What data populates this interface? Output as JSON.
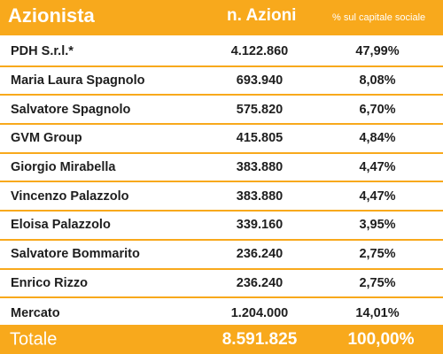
{
  "header": {
    "name": "Azionista",
    "shares": "n. Azioni",
    "percent": "% sul capitale sociale"
  },
  "rows": [
    {
      "name": "PDH S.r.l.*",
      "shares": "4.122.860",
      "percent": "47,99%"
    },
    {
      "name": "Maria Laura Spagnolo",
      "shares": "693.940",
      "percent": "8,08%"
    },
    {
      "name": "Salvatore Spagnolo",
      "shares": "575.820",
      "percent": "6,70%"
    },
    {
      "name": "GVM Group",
      "shares": "415.805",
      "percent": "4,84%"
    },
    {
      "name": "Giorgio Mirabella",
      "shares": "383.880",
      "percent": "4,47%"
    },
    {
      "name": "Vincenzo Palazzolo",
      "shares": "383.880",
      "percent": "4,47%"
    },
    {
      "name": "Eloisa Palazzolo",
      "shares": "339.160",
      "percent": "3,95%"
    },
    {
      "name": "Salvatore Bommarito",
      "shares": "236.240",
      "percent": "2,75%"
    },
    {
      "name": "Enrico Rizzo",
      "shares": "236.240",
      "percent": "2,75%"
    },
    {
      "name": "Mercato",
      "shares": "1.204.000",
      "percent": "14,01%"
    }
  ],
  "total": {
    "name": "Totale",
    "shares": "8.591.825",
    "percent": "100,00%"
  },
  "colors": {
    "accent": "#f8a91c",
    "text": "#1e1e1e",
    "header_text": "#ffffff"
  }
}
